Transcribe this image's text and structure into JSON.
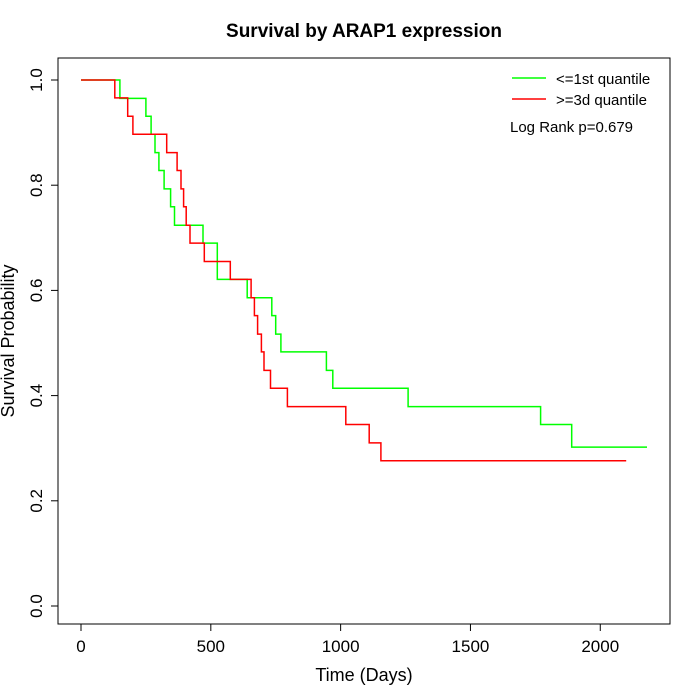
{
  "chart_data": {
    "type": "line",
    "title": "Survival by ARAP1 expression",
    "xlabel": "Time (Days)",
    "ylabel": "Survival Probability",
    "xlim": [
      0,
      2180
    ],
    "ylim": [
      0,
      1
    ],
    "x_ticks": [
      0,
      500,
      1000,
      1500,
      2000
    ],
    "x_tick_labels": [
      "0",
      "500",
      "1000",
      "1500",
      "2000"
    ],
    "y_ticks": [
      0,
      0.2,
      0.4,
      0.6,
      0.8,
      1
    ],
    "y_tick_labels": [
      "0.0",
      "0.2",
      "0.4",
      "0.6",
      "0.8",
      "1.0"
    ],
    "grid": false,
    "legend_position": "top-right",
    "annotation": "Log Rank p=0.679",
    "series": [
      {
        "name": "<=1st quantile",
        "color": "#00ff00",
        "step": true,
        "x": [
          0,
          150,
          250,
          270,
          285,
          300,
          320,
          345,
          360,
          470,
          525,
          640,
          735,
          750,
          770,
          945,
          970,
          1260,
          1770,
          1890,
          2180
        ],
        "y": [
          1.0,
          0.965,
          0.931,
          0.897,
          0.862,
          0.828,
          0.793,
          0.759,
          0.724,
          0.69,
          0.621,
          0.586,
          0.552,
          0.517,
          0.483,
          0.448,
          0.414,
          0.379,
          0.345,
          0.302,
          0.302
        ]
      },
      {
        "name": ">=3d quantile",
        "color": "#ff0000",
        "step": true,
        "x": [
          0,
          130,
          180,
          200,
          330,
          370,
          385,
          395,
          405,
          420,
          475,
          575,
          655,
          668,
          680,
          695,
          705,
          730,
          795,
          1020,
          1110,
          1155,
          2100
        ],
        "y": [
          1.0,
          0.966,
          0.931,
          0.897,
          0.862,
          0.828,
          0.793,
          0.759,
          0.724,
          0.69,
          0.655,
          0.621,
          0.586,
          0.552,
          0.517,
          0.483,
          0.448,
          0.414,
          0.379,
          0.345,
          0.31,
          0.276,
          0.276
        ]
      }
    ]
  }
}
